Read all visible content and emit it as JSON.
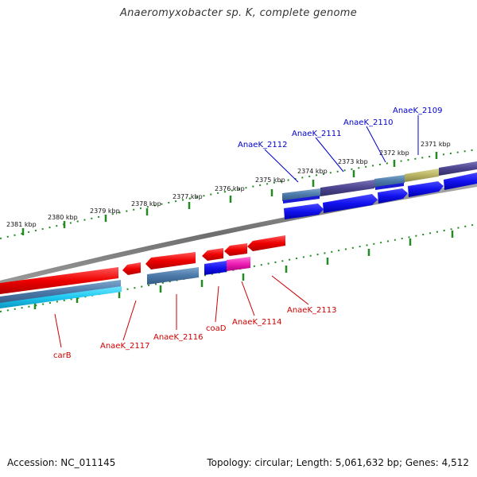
{
  "title": "Anaeromyxobacter sp. K, complete genome",
  "footer": {
    "accession": "Accession: NC_011145",
    "summary": "Topology: circular; Length: 5,061,632 bp; Genes: 4,512"
  },
  "colors": {
    "forward_label": "#0000cc",
    "reverse_label": "#cc0000",
    "tick": "#228b22",
    "backbone": "#808080"
  },
  "ticks": [
    {
      "label": "2381 kbp"
    },
    {
      "label": "2380 kbp"
    },
    {
      "label": "2379 kbp"
    },
    {
      "label": "2378 kbp"
    },
    {
      "label": "2377 kbp"
    },
    {
      "label": "2376 kbp"
    },
    {
      "label": "2375 kbp"
    },
    {
      "label": "2374 kbp"
    },
    {
      "label": "2373 kbp"
    },
    {
      "label": "2372 kbp"
    },
    {
      "label": "2371 kbp"
    }
  ],
  "genes_forward": [
    {
      "name": "AnaeK_2112"
    },
    {
      "name": "AnaeK_2111"
    },
    {
      "name": "AnaeK_2110"
    },
    {
      "name": "AnaeK_2109"
    }
  ],
  "genes_reverse": [
    {
      "name": "carB"
    },
    {
      "name": "AnaeK_2117"
    },
    {
      "name": "AnaeK_2116"
    },
    {
      "name": "coaD"
    },
    {
      "name": "AnaeK_2114"
    },
    {
      "name": "AnaeK_2113"
    }
  ]
}
